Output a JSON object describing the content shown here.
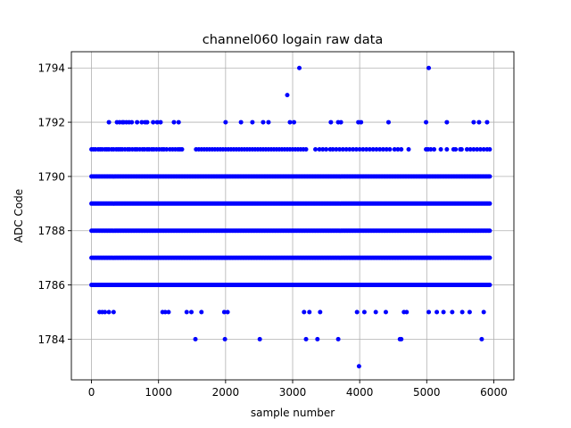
{
  "chart_data": {
    "type": "scatter",
    "title": "channel060 logain raw data",
    "xlabel": "sample number",
    "ylabel": "ADC Code",
    "xlim": [
      -300,
      6300
    ],
    "ylim": [
      1782.5,
      1794.6
    ],
    "x_ticks": [
      0,
      1000,
      2000,
      3000,
      4000,
      5000,
      6000
    ],
    "y_ticks": [
      1784,
      1786,
      1788,
      1790,
      1792,
      1794
    ],
    "x_tick_labels": [
      "0",
      "1000",
      "2000",
      "3000",
      "4000",
      "5000",
      "6000"
    ],
    "y_tick_labels": [
      "1784",
      "1786",
      "1788",
      "1790",
      "1792",
      "1794"
    ],
    "grid": true,
    "marker_color": "#0000ff",
    "series": [
      {
        "dense_levels": [
          1786,
          1787,
          1788,
          1789,
          1790
        ],
        "dense_x_range": [
          0,
          5940
        ],
        "level_1791_x": [
          0,
          30,
          60,
          100,
          130,
          160,
          200,
          230,
          260,
          300,
          330,
          370,
          400,
          430,
          460,
          500,
          540,
          570,
          610,
          650,
          680,
          720,
          760,
          790,
          830,
          860,
          900,
          930,
          970,
          1010,
          1050,
          1080,
          1120,
          1170,
          1210,
          1250,
          1290,
          1320,
          1350,
          1560,
          1600,
          1640,
          1680,
          1720,
          1760,
          1800,
          1840,
          1880,
          1920,
          1960,
          2000,
          2040,
          2080,
          2120,
          2160,
          2200,
          2240,
          2280,
          2320,
          2360,
          2400,
          2440,
          2480,
          2520,
          2560,
          2600,
          2640,
          2680,
          2720,
          2760,
          2800,
          2840,
          2880,
          2920,
          2960,
          3000,
          3040,
          3080,
          3120,
          3160,
          3200,
          3340,
          3400,
          3450,
          3500,
          3560,
          3600,
          3650,
          3700,
          3750,
          3800,
          3850,
          3900,
          3950,
          4000,
          4050,
          4100,
          4150,
          4200,
          4250,
          4300,
          4350,
          4400,
          4450,
          4520,
          4570,
          4620,
          4730,
          4990,
          5020,
          5060,
          5110,
          5210,
          5300,
          5400,
          5430,
          5500,
          5520,
          5600,
          5650,
          5700,
          5750,
          5800,
          5850,
          5900,
          5940
        ],
        "level_1792_x": [
          260,
          380,
          420,
          460,
          480,
          520,
          560,
          600,
          680,
          750,
          800,
          830,
          920,
          980,
          1030,
          1230,
          1300,
          2000,
          2230,
          2400,
          2560,
          2640,
          2960,
          3020,
          3570,
          3680,
          3720,
          3980,
          4020,
          4430,
          4990,
          5300,
          5700,
          5780,
          5900
        ],
        "level_1785_x": [
          120,
          160,
          200,
          260,
          330,
          1060,
          1100,
          1150,
          1420,
          1490,
          1640,
          1980,
          2030,
          3170,
          3250,
          3410,
          3960,
          4070,
          4240,
          4390,
          4660,
          4700,
          5030,
          5150,
          5250,
          5380,
          5530,
          5640,
          5850
        ],
        "level_1784_x": [
          1550,
          1990,
          2510,
          3200,
          3370,
          3680,
          4600,
          4620,
          5820
        ],
        "level_1793_x": [
          2920
        ],
        "level_1794_x": [
          3100,
          5030
        ],
        "level_1783_x": [
          3990
        ]
      }
    ]
  }
}
